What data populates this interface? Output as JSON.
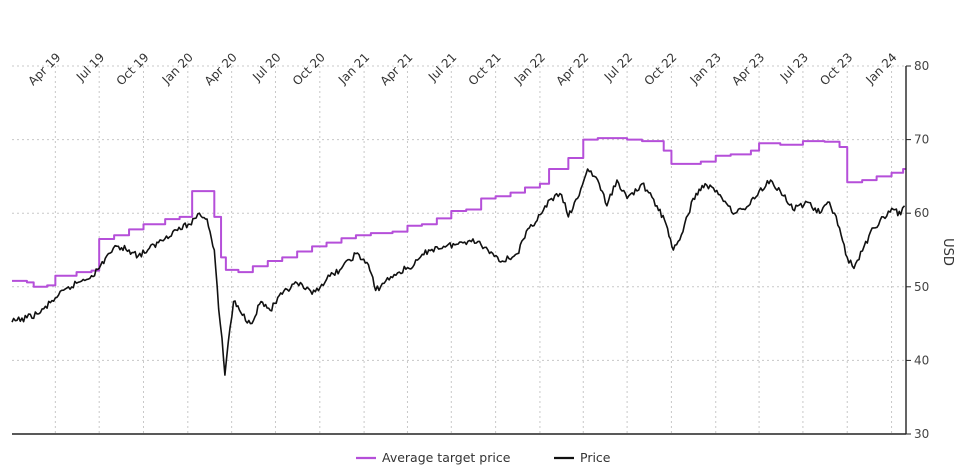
{
  "chart_data": {
    "type": "line",
    "title": "",
    "xlabel": "",
    "ylabel": "USD",
    "ylim": [
      30,
      80
    ],
    "xlim": [
      "2019-01-01",
      "2024-01-31"
    ],
    "y_ticks": [
      30,
      40,
      50,
      60,
      70,
      80
    ],
    "x_ticks": [
      {
        "label": "Apr 19",
        "date": "2019-04-01"
      },
      {
        "label": "Jul 19",
        "date": "2019-07-01"
      },
      {
        "label": "Oct 19",
        "date": "2019-10-01"
      },
      {
        "label": "Jan 20",
        "date": "2020-01-01"
      },
      {
        "label": "Apr 20",
        "date": "2020-04-01"
      },
      {
        "label": "Jul 20",
        "date": "2020-07-01"
      },
      {
        "label": "Oct 20",
        "date": "2020-10-01"
      },
      {
        "label": "Jan 21",
        "date": "2021-01-01"
      },
      {
        "label": "Apr 21",
        "date": "2021-04-01"
      },
      {
        "label": "Jul 21",
        "date": "2021-07-01"
      },
      {
        "label": "Oct 21",
        "date": "2021-10-01"
      },
      {
        "label": "Jan 22",
        "date": "2022-01-01"
      },
      {
        "label": "Apr 22",
        "date": "2022-04-01"
      },
      {
        "label": "Jul 22",
        "date": "2022-07-01"
      },
      {
        "label": "Oct 22",
        "date": "2022-10-01"
      },
      {
        "label": "Jan 23",
        "date": "2023-01-01"
      },
      {
        "label": "Apr 23",
        "date": "2023-04-01"
      },
      {
        "label": "Jul 23",
        "date": "2023-07-01"
      },
      {
        "label": "Oct 23",
        "date": "2023-10-01"
      },
      {
        "label": "Jan 24",
        "date": "2024-01-01"
      }
    ],
    "grid": true,
    "y_axis_position": "right",
    "legend_position": "bottom-center",
    "series": [
      {
        "name": "Average target price",
        "color": "#b54fd9",
        "line_shape": "step",
        "points": [
          [
            "2019-01-01",
            50.8
          ],
          [
            "2019-02-01",
            50.6
          ],
          [
            "2019-02-15",
            50.0
          ],
          [
            "2019-03-15",
            50.2
          ],
          [
            "2019-04-01",
            51.5
          ],
          [
            "2019-05-15",
            52.0
          ],
          [
            "2019-06-15",
            52.2
          ],
          [
            "2019-07-01",
            56.5
          ],
          [
            "2019-08-01",
            57.0
          ],
          [
            "2019-09-01",
            57.8
          ],
          [
            "2019-10-01",
            58.5
          ],
          [
            "2019-11-15",
            59.2
          ],
          [
            "2019-12-15",
            59.5
          ],
          [
            "2020-01-10",
            63.0
          ],
          [
            "2020-01-31",
            63.0
          ],
          [
            "2020-02-25",
            59.5
          ],
          [
            "2020-03-10",
            54.0
          ],
          [
            "2020-03-20",
            52.3
          ],
          [
            "2020-04-15",
            52.0
          ],
          [
            "2020-05-15",
            52.8
          ],
          [
            "2020-06-15",
            53.5
          ],
          [
            "2020-07-15",
            54.0
          ],
          [
            "2020-08-15",
            54.8
          ],
          [
            "2020-09-15",
            55.5
          ],
          [
            "2020-10-15",
            56.0
          ],
          [
            "2020-11-15",
            56.6
          ],
          [
            "2020-12-15",
            57.0
          ],
          [
            "2021-01-15",
            57.3
          ],
          [
            "2021-03-01",
            57.5
          ],
          [
            "2021-04-01",
            58.3
          ],
          [
            "2021-05-01",
            58.5
          ],
          [
            "2021-06-01",
            59.3
          ],
          [
            "2021-07-01",
            60.3
          ],
          [
            "2021-08-01",
            60.5
          ],
          [
            "2021-09-01",
            62.0
          ],
          [
            "2021-10-01",
            62.3
          ],
          [
            "2021-11-01",
            62.8
          ],
          [
            "2021-12-01",
            63.5
          ],
          [
            "2022-01-01",
            64.0
          ],
          [
            "2022-01-20",
            66.0
          ],
          [
            "2022-03-01",
            67.5
          ],
          [
            "2022-04-01",
            70.0
          ],
          [
            "2022-05-01",
            70.2
          ],
          [
            "2022-07-01",
            70.0
          ],
          [
            "2022-08-01",
            69.8
          ],
          [
            "2022-09-15",
            68.5
          ],
          [
            "2022-10-01",
            66.7
          ],
          [
            "2022-12-01",
            67.0
          ],
          [
            "2023-01-01",
            67.8
          ],
          [
            "2023-02-01",
            68.0
          ],
          [
            "2023-03-15",
            68.5
          ],
          [
            "2023-04-01",
            69.5
          ],
          [
            "2023-05-15",
            69.3
          ],
          [
            "2023-07-01",
            69.8
          ],
          [
            "2023-08-15",
            69.7
          ],
          [
            "2023-09-15",
            69.0
          ],
          [
            "2023-10-01",
            64.2
          ],
          [
            "2023-11-01",
            64.5
          ],
          [
            "2023-12-01",
            65.0
          ],
          [
            "2024-01-01",
            65.5
          ],
          [
            "2024-01-25",
            66.0
          ]
        ]
      },
      {
        "name": "Price",
        "color": "#111111",
        "line_shape": "jagged",
        "points": [
          [
            "2019-01-01",
            45.2
          ],
          [
            "2019-02-01",
            45.8
          ],
          [
            "2019-03-01",
            46.5
          ],
          [
            "2019-04-01",
            48.5
          ],
          [
            "2019-05-15",
            50.5
          ],
          [
            "2019-06-15",
            51.5
          ],
          [
            "2019-07-01",
            52.5
          ],
          [
            "2019-07-20",
            54.5
          ],
          [
            "2019-08-10",
            55.5
          ],
          [
            "2019-09-01",
            55.0
          ],
          [
            "2019-09-20",
            54.2
          ],
          [
            "2019-10-10",
            55.0
          ],
          [
            "2019-11-01",
            56.0
          ],
          [
            "2019-12-01",
            57.5
          ],
          [
            "2020-01-05",
            58.5
          ],
          [
            "2020-01-25",
            60.0
          ],
          [
            "2020-02-10",
            59.2
          ],
          [
            "2020-02-25",
            55.0
          ],
          [
            "2020-03-05",
            47.0
          ],
          [
            "2020-03-12",
            43.0
          ],
          [
            "2020-03-18",
            38.0
          ],
          [
            "2020-03-25",
            42.5
          ],
          [
            "2020-04-05",
            48.0
          ],
          [
            "2020-04-20",
            46.5
          ],
          [
            "2020-05-10",
            45.0
          ],
          [
            "2020-06-01",
            48.0
          ],
          [
            "2020-06-20",
            46.8
          ],
          [
            "2020-07-15",
            49.0
          ],
          [
            "2020-08-15",
            50.5
          ],
          [
            "2020-09-15",
            49.0
          ],
          [
            "2020-10-15",
            51.0
          ],
          [
            "2020-11-15",
            52.5
          ],
          [
            "2020-12-15",
            54.5
          ],
          [
            "2021-01-10",
            53.0
          ],
          [
            "2021-01-25",
            49.5
          ],
          [
            "2021-02-15",
            50.8
          ],
          [
            "2021-03-15",
            52.0
          ],
          [
            "2021-04-15",
            53.0
          ],
          [
            "2021-05-15",
            55.0
          ],
          [
            "2021-06-15",
            55.5
          ],
          [
            "2021-07-15",
            55.8
          ],
          [
            "2021-08-15",
            56.5
          ],
          [
            "2021-09-15",
            55.0
          ],
          [
            "2021-10-15",
            53.5
          ],
          [
            "2021-11-15",
            54.5
          ],
          [
            "2021-12-10",
            58.0
          ],
          [
            "2022-01-05",
            60.0
          ],
          [
            "2022-01-25",
            62.0
          ],
          [
            "2022-02-15",
            62.5
          ],
          [
            "2022-03-01",
            59.5
          ],
          [
            "2022-03-20",
            62.0
          ],
          [
            "2022-04-10",
            66.0
          ],
          [
            "2022-05-01",
            64.5
          ],
          [
            "2022-05-20",
            61.0
          ],
          [
            "2022-06-10",
            64.5
          ],
          [
            "2022-07-01",
            62.0
          ],
          [
            "2022-08-01",
            64.0
          ],
          [
            "2022-09-01",
            61.0
          ],
          [
            "2022-09-20",
            58.5
          ],
          [
            "2022-10-05",
            55.0
          ],
          [
            "2022-10-25",
            57.5
          ],
          [
            "2022-11-15",
            62.0
          ],
          [
            "2022-12-10",
            64.0
          ],
          [
            "2023-01-10",
            62.5
          ],
          [
            "2023-02-10",
            60.0
          ],
          [
            "2023-03-10",
            61.0
          ],
          [
            "2023-04-01",
            63.0
          ],
          [
            "2023-04-25",
            64.5
          ],
          [
            "2023-05-15",
            63.0
          ],
          [
            "2023-06-10",
            60.5
          ],
          [
            "2023-07-10",
            61.5
          ],
          [
            "2023-08-05",
            60.0
          ],
          [
            "2023-08-25",
            61.5
          ],
          [
            "2023-09-15",
            58.0
          ],
          [
            "2023-10-01",
            54.0
          ],
          [
            "2023-10-15",
            52.5
          ],
          [
            "2023-11-05",
            55.5
          ],
          [
            "2023-11-25",
            58.0
          ],
          [
            "2023-12-15",
            59.5
          ],
          [
            "2024-01-05",
            60.5
          ],
          [
            "2024-01-20",
            59.8
          ],
          [
            "2024-01-28",
            61.0
          ]
        ]
      }
    ]
  }
}
